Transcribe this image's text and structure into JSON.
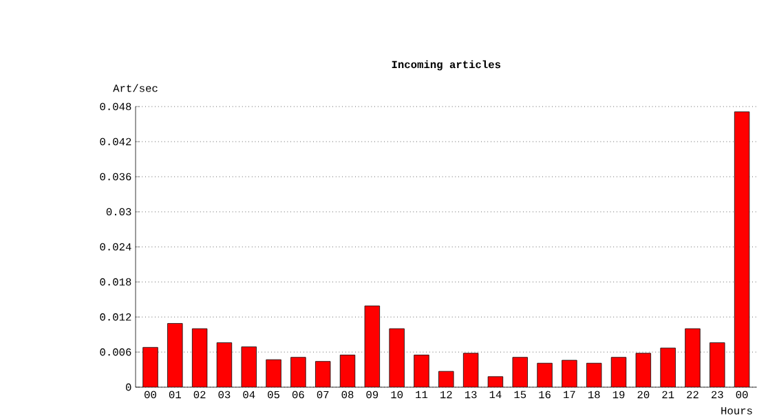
{
  "chart_data": {
    "type": "bar",
    "title": "Incoming articles",
    "ylabel": "Art/sec",
    "xlabel": "Hours",
    "categories": [
      "00",
      "01",
      "02",
      "03",
      "04",
      "05",
      "06",
      "07",
      "08",
      "09",
      "10",
      "11",
      "12",
      "13",
      "14",
      "15",
      "16",
      "17",
      "18",
      "19",
      "20",
      "21",
      "22",
      "23",
      "00"
    ],
    "values": [
      0.0068,
      0.0109,
      0.01,
      0.0076,
      0.0069,
      0.0047,
      0.0051,
      0.0044,
      0.0055,
      0.0139,
      0.01,
      0.0055,
      0.0027,
      0.0058,
      0.0018,
      0.0051,
      0.0041,
      0.0046,
      0.0041,
      0.0051,
      0.0058,
      0.0067,
      0.01,
      0.0076,
      0.0471
    ],
    "color": "#ff0000",
    "ylim": [
      0,
      0.048
    ],
    "yticks": [
      0,
      0.006,
      0.012,
      0.018,
      0.024,
      0.03,
      0.036,
      0.042,
      0.048
    ],
    "grid": "y"
  }
}
